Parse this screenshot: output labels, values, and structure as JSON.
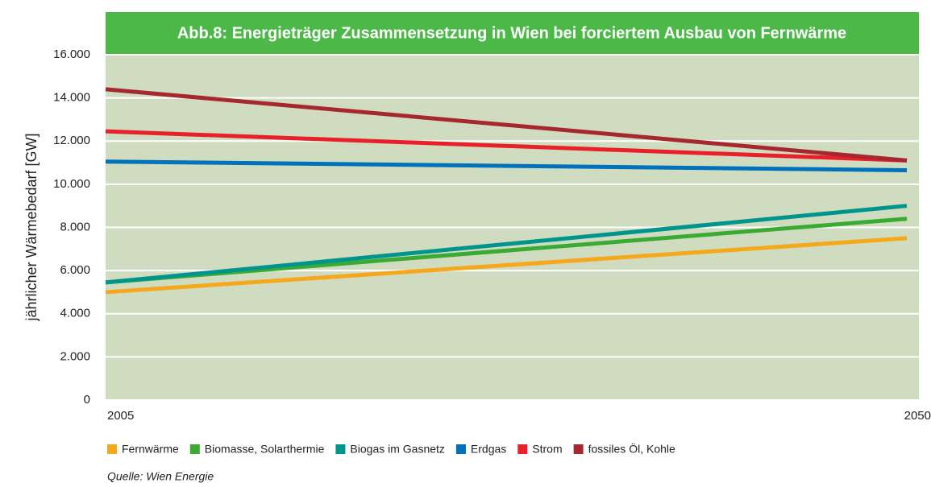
{
  "chart_data": {
    "type": "line",
    "title": "Abb.8: Energieträger Zusammensetzung in Wien bei forciertem Ausbau von Fernwärme",
    "y_label": "jährlicher Wärmebedarf [GW]",
    "source": "Quelle: Wien Energie",
    "categories": [
      "2005",
      "2050"
    ],
    "series": [
      {
        "name": "Fernwärme",
        "color": "#f5a81c",
        "values": [
          5000,
          7500
        ]
      },
      {
        "name": "Biomasse, Solarthermie",
        "color": "#3aaa35",
        "values": [
          5450,
          8400
        ]
      },
      {
        "name": "Biogas im Gasnetz",
        "color": "#00958c",
        "values": [
          5450,
          9000
        ]
      },
      {
        "name": "Erdgas",
        "color": "#0071bc",
        "values": [
          11050,
          10650
        ]
      },
      {
        "name": "Strom",
        "color": "#e8202a",
        "values": [
          12450,
          11100
        ]
      },
      {
        "name": "fossiles Öl, Kohle",
        "color": "#a6282f",
        "values": [
          14400,
          11100
        ]
      }
    ],
    "ylim": [
      0,
      16000
    ],
    "yticks": [
      0,
      {
        "value": 2000,
        "label": "2.000"
      },
      {
        "value": 4000,
        "label": "4.000"
      },
      {
        "value": 6000,
        "label": "6.000"
      },
      {
        "value": 8000,
        "label": "8.000"
      },
      {
        "value": 10000,
        "label": "10.000"
      },
      {
        "value": 12000,
        "label": "12.000"
      },
      {
        "value": 14000,
        "label": "14.000"
      },
      {
        "value": 16000,
        "label": "16.000"
      }
    ],
    "grid": true,
    "legend": "bottom"
  }
}
